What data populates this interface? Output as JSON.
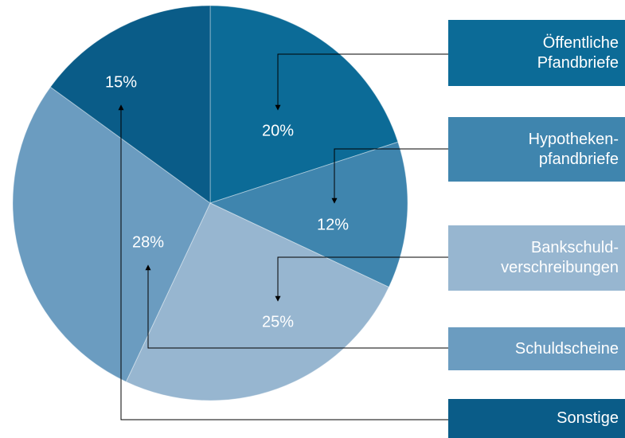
{
  "chart_data": {
    "type": "pie",
    "categories": [
      "Öffentliche\nPfandbriefe",
      "Hypotheken-\npfandbriefe",
      "Bankschuld-\nverschreibungen",
      "Schuldscheine",
      "Sonstige"
    ],
    "values": [
      20,
      12,
      25,
      28,
      15
    ],
    "value_labels": [
      "20%",
      "12%",
      "25%",
      "28%",
      "15%"
    ],
    "colors": [
      "#0c6b97",
      "#3f85ae",
      "#97b6d0",
      "#6b9cc0",
      "#0a5c88"
    ]
  }
}
